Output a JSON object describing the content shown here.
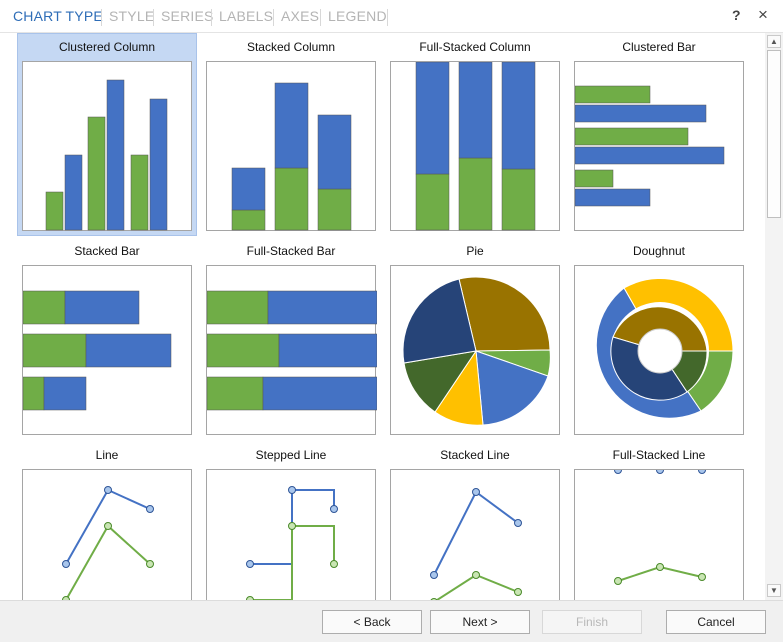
{
  "tabs": [
    {
      "label": "CHART TYPE",
      "active": true
    },
    {
      "label": "STYLE",
      "active": false
    },
    {
      "label": "SERIES",
      "active": false
    },
    {
      "label": "LABELS",
      "active": false
    },
    {
      "label": "AXES",
      "active": false
    },
    {
      "label": "LEGEND",
      "active": false
    }
  ],
  "window_controls": {
    "help": "?",
    "close": "×"
  },
  "gallery": {
    "selected": "Clustered Column",
    "items": [
      {
        "label": "Clustered Column",
        "icon": "clustered-column-chart-icon"
      },
      {
        "label": "Stacked Column",
        "icon": "stacked-column-chart-icon"
      },
      {
        "label": "Full-Stacked Column",
        "icon": "full-stacked-column-chart-icon"
      },
      {
        "label": "Clustered Bar",
        "icon": "clustered-bar-chart-icon"
      },
      {
        "label": "Stacked Bar",
        "icon": "stacked-bar-chart-icon"
      },
      {
        "label": "Full-Stacked Bar",
        "icon": "full-stacked-bar-chart-icon"
      },
      {
        "label": "Pie",
        "icon": "pie-chart-icon"
      },
      {
        "label": "Doughnut",
        "icon": "doughnut-chart-icon"
      },
      {
        "label": "Line",
        "icon": "line-chart-icon"
      },
      {
        "label": "Stepped Line",
        "icon": "stepped-line-chart-icon"
      },
      {
        "label": "Stacked Line",
        "icon": "stacked-line-chart-icon"
      },
      {
        "label": "Full-Stacked Line",
        "icon": "full-stacked-line-chart-icon"
      }
    ]
  },
  "footer": {
    "back": "< Back",
    "next": "Next >",
    "finish": "Finish",
    "cancel": "Cancel",
    "finish_enabled": false
  },
  "colors": {
    "accent": "#2e6db7",
    "series_blue": "#4472c4",
    "series_green": "#70ad47",
    "pie_olive": "#997300",
    "pie_navy": "#264478",
    "pie_darkgreen": "#43682b",
    "pie_gold": "#ffc000",
    "selection": "#c5d8f3"
  }
}
